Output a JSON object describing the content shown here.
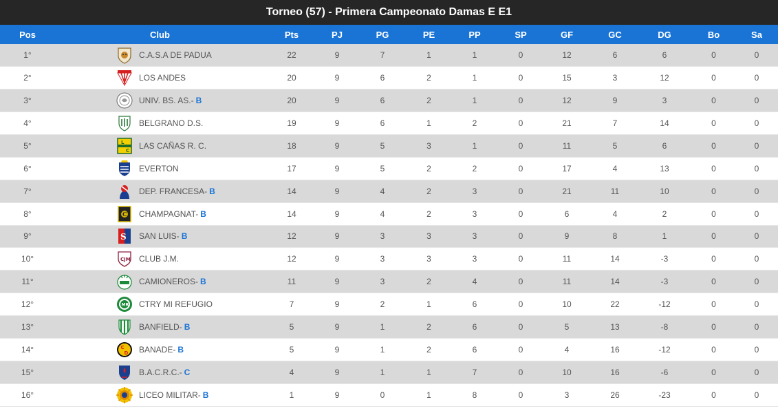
{
  "title": "Torneo (57) - Primera Campeonato Damas E E1",
  "columns": [
    "Pos",
    "Club",
    "Pts",
    "PJ",
    "PG",
    "PE",
    "PP",
    "SP",
    "GF",
    "GC",
    "DG",
    "Bo",
    "Sa"
  ],
  "rows": [
    {
      "pos": "1°",
      "club": "C.A.S.A DE PADUA",
      "div": "",
      "pts": "22",
      "pj": "9",
      "pg": "7",
      "pe": "1",
      "pp": "1",
      "sp": "0",
      "gf": "12",
      "gc": "6",
      "dg": "6",
      "bo": "0",
      "sa": "0",
      "logo": "padua-crest-icon"
    },
    {
      "pos": "2°",
      "club": "LOS ANDES",
      "div": "",
      "pts": "20",
      "pj": "9",
      "pg": "6",
      "pe": "2",
      "pp": "1",
      "sp": "0",
      "gf": "15",
      "gc": "3",
      "dg": "12",
      "bo": "0",
      "sa": "0",
      "logo": "los-andes-crest-icon"
    },
    {
      "pos": "3°",
      "club": "UNIV. BS. AS.-",
      "div": "B",
      "pts": "20",
      "pj": "9",
      "pg": "6",
      "pe": "2",
      "pp": "1",
      "sp": "0",
      "gf": "12",
      "gc": "9",
      "dg": "3",
      "bo": "0",
      "sa": "0",
      "logo": "univ-bs-as-crest-icon"
    },
    {
      "pos": "4°",
      "club": "BELGRANO D.S.",
      "div": "",
      "pts": "19",
      "pj": "9",
      "pg": "6",
      "pe": "1",
      "pp": "2",
      "sp": "0",
      "gf": "21",
      "gc": "7",
      "dg": "14",
      "bo": "0",
      "sa": "0",
      "logo": "belgrano-crest-icon"
    },
    {
      "pos": "5°",
      "club": "LAS CAÑAS R. C.",
      "div": "",
      "pts": "18",
      "pj": "9",
      "pg": "5",
      "pe": "3",
      "pp": "1",
      "sp": "0",
      "gf": "11",
      "gc": "5",
      "dg": "6",
      "bo": "0",
      "sa": "0",
      "logo": "las-canas-crest-icon"
    },
    {
      "pos": "6°",
      "club": "EVERTON",
      "div": "",
      "pts": "17",
      "pj": "9",
      "pg": "5",
      "pe": "2",
      "pp": "2",
      "sp": "0",
      "gf": "17",
      "gc": "4",
      "dg": "13",
      "bo": "0",
      "sa": "0",
      "logo": "everton-crest-icon"
    },
    {
      "pos": "7°",
      "club": "DEP. FRANCESA-",
      "div": "B",
      "pts": "14",
      "pj": "9",
      "pg": "4",
      "pe": "2",
      "pp": "3",
      "sp": "0",
      "gf": "21",
      "gc": "11",
      "dg": "10",
      "bo": "0",
      "sa": "0",
      "logo": "dep-francesa-crest-icon"
    },
    {
      "pos": "8°",
      "club": "CHAMPAGNAT-",
      "div": "B",
      "pts": "14",
      "pj": "9",
      "pg": "4",
      "pe": "2",
      "pp": "3",
      "sp": "0",
      "gf": "6",
      "gc": "4",
      "dg": "2",
      "bo": "0",
      "sa": "0",
      "logo": "champagnat-crest-icon"
    },
    {
      "pos": "9°",
      "club": "SAN LUIS-",
      "div": "B",
      "pts": "12",
      "pj": "9",
      "pg": "3",
      "pe": "3",
      "pp": "3",
      "sp": "0",
      "gf": "9",
      "gc": "8",
      "dg": "1",
      "bo": "0",
      "sa": "0",
      "logo": "san-luis-crest-icon"
    },
    {
      "pos": "10°",
      "club": "CLUB J.M.",
      "div": "",
      "pts": "12",
      "pj": "9",
      "pg": "3",
      "pe": "3",
      "pp": "3",
      "sp": "0",
      "gf": "11",
      "gc": "14",
      "dg": "-3",
      "bo": "0",
      "sa": "0",
      "logo": "club-jm-crest-icon"
    },
    {
      "pos": "11°",
      "club": "CAMIONEROS-",
      "div": "B",
      "pts": "11",
      "pj": "9",
      "pg": "3",
      "pe": "2",
      "pp": "4",
      "sp": "0",
      "gf": "11",
      "gc": "14",
      "dg": "-3",
      "bo": "0",
      "sa": "0",
      "logo": "camioneros-crest-icon"
    },
    {
      "pos": "12°",
      "club": "CTRY MI REFUGIO",
      "div": "",
      "pts": "7",
      "pj": "9",
      "pg": "2",
      "pe": "1",
      "pp": "6",
      "sp": "0",
      "gf": "10",
      "gc": "22",
      "dg": "-12",
      "bo": "0",
      "sa": "0",
      "logo": "mi-refugio-crest-icon"
    },
    {
      "pos": "13°",
      "club": "BANFIELD-",
      "div": "B",
      "pts": "5",
      "pj": "9",
      "pg": "1",
      "pe": "2",
      "pp": "6",
      "sp": "0",
      "gf": "5",
      "gc": "13",
      "dg": "-8",
      "bo": "0",
      "sa": "0",
      "logo": "banfield-crest-icon"
    },
    {
      "pos": "14°",
      "club": "BANADE-",
      "div": "B",
      "pts": "5",
      "pj": "9",
      "pg": "1",
      "pe": "2",
      "pp": "6",
      "sp": "0",
      "gf": "4",
      "gc": "16",
      "dg": "-12",
      "bo": "0",
      "sa": "0",
      "logo": "banade-crest-icon"
    },
    {
      "pos": "15°",
      "club": "B.A.C.R.C.-",
      "div": "C",
      "pts": "4",
      "pj": "9",
      "pg": "1",
      "pe": "1",
      "pp": "7",
      "sp": "0",
      "gf": "10",
      "gc": "16",
      "dg": "-6",
      "bo": "0",
      "sa": "0",
      "logo": "bacrc-crest-icon"
    },
    {
      "pos": "16°",
      "club": "LICEO MILITAR-",
      "div": "B",
      "pts": "1",
      "pj": "9",
      "pg": "0",
      "pe": "1",
      "pp": "8",
      "sp": "0",
      "gf": "3",
      "gc": "26",
      "dg": "-23",
      "bo": "0",
      "sa": "0",
      "logo": "liceo-militar-crest-icon"
    }
  ],
  "colors": {
    "header_bg": "#1a74d6",
    "title_bg": "#262626",
    "row_odd": "#d9d9d9",
    "row_even": "#ffffff",
    "division": "#1a74d6"
  }
}
